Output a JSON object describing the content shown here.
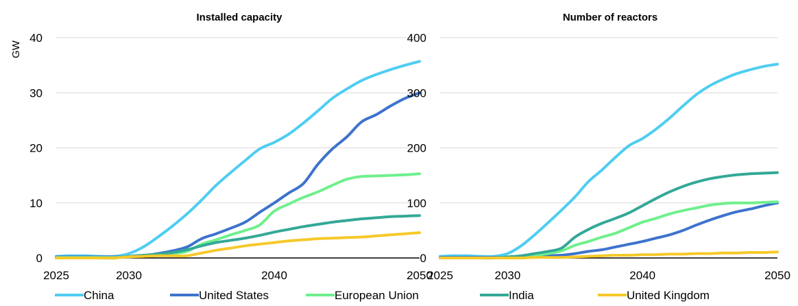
{
  "chart_data": [
    {
      "type": "line",
      "title": "Installed capacity",
      "ylabel": "GW",
      "xlim": [
        2025,
        2050
      ],
      "ylim": [
        0,
        40
      ],
      "x_ticks": [
        "2025",
        "2030",
        "2040",
        "2050"
      ],
      "y_ticks": [
        "0",
        "10",
        "20",
        "30",
        "40"
      ],
      "grid": true,
      "x": [
        2025,
        2026,
        2027,
        2028,
        2029,
        2030,
        2031,
        2032,
        2033,
        2034,
        2035,
        2036,
        2037,
        2038,
        2039,
        2040,
        2041,
        2042,
        2043,
        2044,
        2045,
        2046,
        2047,
        2048,
        2049,
        2050
      ],
      "series": [
        {
          "name": "China",
          "color": "#4fcdf2",
          "values": [
            0.3,
            0.4,
            0.4,
            0.3,
            0.3,
            0.8,
            2.0,
            3.8,
            5.8,
            8.0,
            10.5,
            13.2,
            15.5,
            17.7,
            19.8,
            21.0,
            22.5,
            24.5,
            26.7,
            29.0,
            30.7,
            32.2,
            33.3,
            34.2,
            35.0,
            35.7
          ]
        },
        {
          "name": "United States",
          "color": "#3d73cc",
          "values": [
            0.2,
            0.2,
            0.2,
            0.2,
            0.2,
            0.2,
            0.4,
            0.8,
            1.3,
            2.0,
            3.5,
            4.4,
            5.4,
            6.5,
            8.3,
            10.0,
            11.8,
            13.5,
            17.0,
            19.8,
            22.0,
            24.7,
            26.0,
            27.6,
            29.0,
            30.0
          ]
        },
        {
          "name": "European Union",
          "color": "#6ef08c",
          "values": [
            0.1,
            0.1,
            0.1,
            0.1,
            0.1,
            0.2,
            0.4,
            0.6,
            0.8,
            1.2,
            2.5,
            3.3,
            4.2,
            5.0,
            6.0,
            8.5,
            9.8,
            11.0,
            12.0,
            13.2,
            14.3,
            14.8,
            14.9,
            15.0,
            15.1,
            15.3
          ]
        },
        {
          "name": "India",
          "color": "#34a897",
          "values": [
            0.0,
            0.0,
            0.0,
            0.0,
            0.0,
            0.3,
            0.5,
            0.7,
            1.0,
            1.5,
            2.2,
            2.8,
            3.2,
            3.6,
            4.1,
            4.7,
            5.2,
            5.7,
            6.1,
            6.5,
            6.8,
            7.1,
            7.3,
            7.5,
            7.6,
            7.7
          ]
        },
        {
          "name": "United Kingdom",
          "color": "#f5c92a",
          "values": [
            0.0,
            0.0,
            0.0,
            0.0,
            0.0,
            0.2,
            0.3,
            0.4,
            0.4,
            0.4,
            0.9,
            1.4,
            1.8,
            2.2,
            2.5,
            2.8,
            3.1,
            3.3,
            3.5,
            3.6,
            3.7,
            3.8,
            4.0,
            4.2,
            4.4,
            4.6
          ]
        }
      ]
    },
    {
      "type": "line",
      "title": "Number of reactors",
      "ylabel": "",
      "xlim": [
        2025,
        2050
      ],
      "ylim": [
        0,
        400
      ],
      "x_ticks": [
        "2025",
        "2030",
        "2040",
        "2050"
      ],
      "y_ticks": [
        "0",
        "100",
        "200",
        "300",
        "400"
      ],
      "grid": true,
      "x": [
        2025,
        2026,
        2027,
        2028,
        2029,
        2030,
        2031,
        2032,
        2033,
        2034,
        2035,
        2036,
        2037,
        2038,
        2039,
        2040,
        2041,
        2042,
        2043,
        2044,
        2045,
        2046,
        2047,
        2048,
        2049,
        2050
      ],
      "series": [
        {
          "name": "China",
          "color": "#4fcdf2",
          "values": [
            3,
            4,
            4,
            3,
            3,
            8,
            22,
            42,
            64,
            87,
            111,
            139,
            160,
            183,
            204,
            217,
            234,
            254,
            276,
            297,
            313,
            325,
            335,
            342,
            348,
            352
          ]
        },
        {
          "name": "United States",
          "color": "#3d73cc",
          "values": [
            1,
            1,
            1,
            1,
            1,
            1,
            2,
            3,
            4,
            5,
            8,
            12,
            15,
            20,
            25,
            30,
            36,
            42,
            50,
            60,
            69,
            77,
            84,
            89,
            95,
            100
          ]
        },
        {
          "name": "European Union",
          "color": "#6ef08c",
          "values": [
            0,
            0,
            0,
            0,
            0,
            1,
            3,
            5,
            8,
            13,
            23,
            30,
            38,
            45,
            55,
            65,
            72,
            80,
            86,
            91,
            96,
            99,
            100,
            100,
            101,
            102
          ]
        },
        {
          "name": "India",
          "color": "#34a897",
          "values": [
            0,
            0,
            0,
            0,
            0,
            2,
            4,
            8,
            12,
            18,
            38,
            52,
            63,
            72,
            82,
            95,
            108,
            120,
            130,
            138,
            144,
            148,
            151,
            153,
            154,
            155
          ]
        },
        {
          "name": "United Kingdom",
          "color": "#f5c92a",
          "values": [
            0,
            0,
            0,
            0,
            0,
            0,
            0,
            1,
            1,
            1,
            2,
            3,
            4,
            5,
            5,
            6,
            6,
            7,
            7,
            8,
            8,
            9,
            9,
            10,
            10,
            11
          ]
        }
      ]
    }
  ],
  "legend": [
    {
      "name": "China",
      "color": "#4fcdf2"
    },
    {
      "name": "United States",
      "color": "#3d73cc"
    },
    {
      "name": "European Union",
      "color": "#6ef08c"
    },
    {
      "name": "India",
      "color": "#34a897"
    },
    {
      "name": "United Kingdom",
      "color": "#f5c92a"
    }
  ]
}
